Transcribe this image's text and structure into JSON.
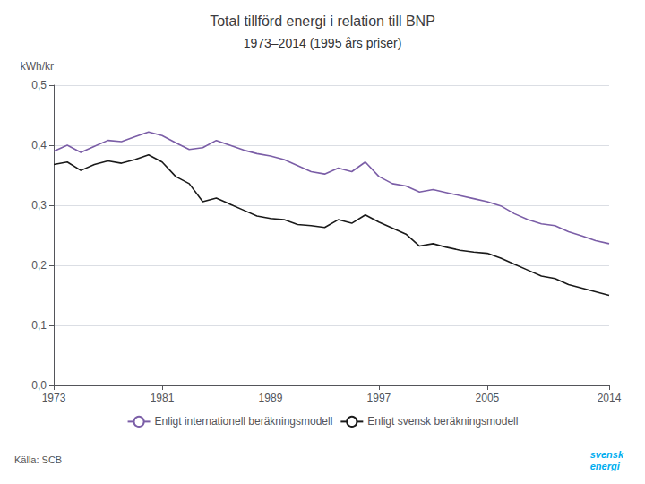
{
  "chart_data": {
    "type": "line",
    "title": "Total tillförd energi i relation till BNP",
    "subtitle": "1973–2014 (1995 års priser)",
    "y_label": "kWh/kr",
    "annotations": [
      "Källa: SCB",
      "svensk\nenergi"
    ],
    "x": [
      1973,
      1974,
      1975,
      1976,
      1977,
      1978,
      1979,
      1980,
      1981,
      1982,
      1983,
      1984,
      1985,
      1986,
      1987,
      1988,
      1989,
      1990,
      1991,
      1992,
      1993,
      1994,
      1995,
      1996,
      1997,
      1998,
      1999,
      2000,
      2001,
      2002,
      2003,
      2004,
      2005,
      2006,
      2007,
      2008,
      2009,
      2010,
      2011,
      2012,
      2013,
      2014
    ],
    "series": [
      {
        "name": "Enligt internationell beräkningsmodell",
        "color": "#7B5EA7",
        "values": [
          0.39,
          0.4,
          0.388,
          0.398,
          0.408,
          0.406,
          0.414,
          0.422,
          0.416,
          0.404,
          0.393,
          0.396,
          0.408,
          0.4,
          0.392,
          0.386,
          0.382,
          0.376,
          0.366,
          0.356,
          0.352,
          0.362,
          0.356,
          0.372,
          0.348,
          0.336,
          0.332,
          0.322,
          0.326,
          0.321,
          0.316,
          0.311,
          0.306,
          0.299,
          0.286,
          0.276,
          0.269,
          0.266,
          0.256,
          0.249,
          0.241,
          0.236
        ]
      },
      {
        "name": "Enligt svensk beräkningsmodell",
        "color": "#1a1a1a",
        "values": [
          0.368,
          0.372,
          0.358,
          0.368,
          0.374,
          0.37,
          0.376,
          0.384,
          0.372,
          0.348,
          0.336,
          0.306,
          0.312,
          0.302,
          0.292,
          0.282,
          0.278,
          0.276,
          0.268,
          0.266,
          0.263,
          0.276,
          0.27,
          0.284,
          0.272,
          0.262,
          0.252,
          0.232,
          0.236,
          0.23,
          0.225,
          0.222,
          0.22,
          0.212,
          0.202,
          0.192,
          0.182,
          0.178,
          0.168,
          0.162,
          0.156,
          0.15
        ]
      }
    ],
    "xlim": [
      1973,
      2014
    ],
    "xticks": [
      1973,
      1981,
      1989,
      1997,
      2005,
      2014
    ],
    "ylim": [
      0.0,
      0.5
    ],
    "yticks": [
      {
        "value": 0.0,
        "label": "0,0"
      },
      {
        "value": 0.1,
        "label": "0,1"
      },
      {
        "value": 0.2,
        "label": "0,2"
      },
      {
        "value": 0.3,
        "label": "0,3"
      },
      {
        "value": 0.4,
        "label": "0,4"
      },
      {
        "value": 0.5,
        "label": "0,5"
      }
    ],
    "grid": true,
    "legend": "bottom"
  }
}
